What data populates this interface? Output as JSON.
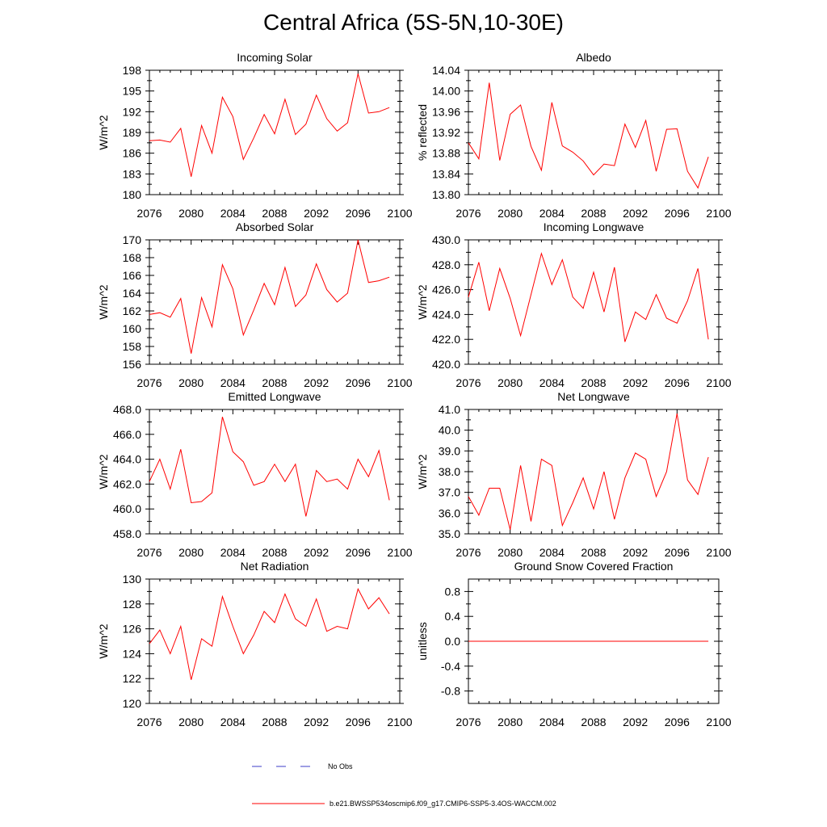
{
  "title": "Central Africa (5S-5N,10-30E)",
  "colors": {
    "series": "#ff0000",
    "obs": "#3c3cc8",
    "axis": "#000000"
  },
  "legend": {
    "obs_label": "No Obs",
    "model_label": "b.e21.BWSSP534oscmip6.f09_g17.CMIP6-SSP5-3.4OS-WACCM.002"
  },
  "chart_data": [
    {
      "type": "line",
      "title": "Incoming Solar",
      "ylabel": "W/m^2",
      "xlim": [
        2076,
        2100
      ],
      "ylim": [
        180,
        198
      ],
      "xticks": [
        "2076",
        "2080",
        "2084",
        "2088",
        "2092",
        "2096",
        "2100"
      ],
      "yticks": [
        "180",
        "183",
        "186",
        "189",
        "192",
        "195",
        "198"
      ],
      "x": [
        2076,
        2077,
        2078,
        2079,
        2080,
        2081,
        2082,
        2083,
        2084,
        2085,
        2086,
        2087,
        2088,
        2089,
        2090,
        2091,
        2092,
        2093,
        2094,
        2095,
        2096,
        2097,
        2098,
        2099
      ],
      "values": [
        187.8,
        187.9,
        187.6,
        189.6,
        182.6,
        190.0,
        186.0,
        194.1,
        191.3,
        185.1,
        188.2,
        191.6,
        188.8,
        193.8,
        188.7,
        190.2,
        194.4,
        191.0,
        189.2,
        190.4,
        197.5,
        191.8,
        192.0,
        192.6
      ]
    },
    {
      "type": "line",
      "title": "Albedo",
      "ylabel": "% reflected",
      "xlim": [
        2076,
        2100
      ],
      "ylim": [
        13.8,
        14.04
      ],
      "xticks": [
        "2076",
        "2080",
        "2084",
        "2088",
        "2092",
        "2096",
        "2100"
      ],
      "yticks": [
        "13.80",
        "13.84",
        "13.88",
        "13.92",
        "13.96",
        "14.00",
        "14.04"
      ],
      "x": [
        2076,
        2077,
        2078,
        2079,
        2080,
        2081,
        2082,
        2083,
        2084,
        2085,
        2086,
        2087,
        2088,
        2089,
        2090,
        2091,
        2092,
        2093,
        2094,
        2095,
        2096,
        2097,
        2098,
        2099
      ],
      "values": [
        13.9,
        13.869,
        14.016,
        13.866,
        13.955,
        13.973,
        13.893,
        13.847,
        13.978,
        13.894,
        13.882,
        13.865,
        13.838,
        13.859,
        13.856,
        13.936,
        13.891,
        13.943,
        13.845,
        13.926,
        13.927,
        13.845,
        13.813,
        13.873
      ]
    },
    {
      "type": "line",
      "title": "Absorbed Solar",
      "ylabel": "W/m^2",
      "xlim": [
        2076,
        2100
      ],
      "ylim": [
        156,
        170
      ],
      "xticks": [
        "2076",
        "2080",
        "2084",
        "2088",
        "2092",
        "2096",
        "2100"
      ],
      "yticks": [
        "156",
        "158",
        "160",
        "162",
        "164",
        "166",
        "168",
        "170"
      ],
      "x": [
        2076,
        2077,
        2078,
        2079,
        2080,
        2081,
        2082,
        2083,
        2084,
        2085,
        2086,
        2087,
        2088,
        2089,
        2090,
        2091,
        2092,
        2093,
        2094,
        2095,
        2096,
        2097,
        2098,
        2099
      ],
      "values": [
        161.6,
        161.8,
        161.3,
        163.4,
        157.2,
        163.5,
        160.2,
        167.2,
        164.5,
        159.3,
        162.1,
        165.1,
        162.7,
        166.9,
        162.5,
        163.8,
        167.3,
        164.4,
        163.0,
        164.0,
        170.0,
        165.2,
        165.4,
        165.8
      ]
    },
    {
      "type": "line",
      "title": "Incoming Longwave",
      "ylabel": "W/m^2",
      "xlim": [
        2076,
        2100
      ],
      "ylim": [
        420.0,
        430.0
      ],
      "xticks": [
        "2076",
        "2080",
        "2084",
        "2088",
        "2092",
        "2096",
        "2100"
      ],
      "yticks": [
        "420.0",
        "422.0",
        "424.0",
        "426.0",
        "428.0",
        "430.0"
      ],
      "x": [
        2076,
        2077,
        2078,
        2079,
        2080,
        2081,
        2082,
        2083,
        2084,
        2085,
        2086,
        2087,
        2088,
        2089,
        2090,
        2091,
        2092,
        2093,
        2094,
        2095,
        2096,
        2097,
        2098,
        2099
      ],
      "values": [
        425.4,
        428.2,
        424.3,
        427.7,
        425.3,
        422.3,
        425.6,
        428.9,
        426.4,
        428.4,
        425.4,
        424.5,
        427.4,
        424.2,
        427.8,
        421.8,
        424.2,
        423.6,
        425.6,
        423.7,
        423.3,
        425.1,
        427.7,
        422.0
      ]
    },
    {
      "type": "line",
      "title": "Emitted Longwave",
      "ylabel": "W/m^2",
      "xlim": [
        2076,
        2100
      ],
      "ylim": [
        458.0,
        468.0
      ],
      "xticks": [
        "2076",
        "2080",
        "2084",
        "2088",
        "2092",
        "2096",
        "2100"
      ],
      "yticks": [
        "458.0",
        "460.0",
        "462.0",
        "464.0",
        "466.0",
        "468.0"
      ],
      "x": [
        2076,
        2077,
        2078,
        2079,
        2080,
        2081,
        2082,
        2083,
        2084,
        2085,
        2086,
        2087,
        2088,
        2089,
        2090,
        2091,
        2092,
        2093,
        2094,
        2095,
        2096,
        2097,
        2098,
        2099
      ],
      "values": [
        462.2,
        464.0,
        461.6,
        464.8,
        460.5,
        460.6,
        461.3,
        467.4,
        464.6,
        463.8,
        461.9,
        462.2,
        463.6,
        462.2,
        463.6,
        459.4,
        463.1,
        462.2,
        462.4,
        461.6,
        464.0,
        462.6,
        464.7,
        460.7
      ]
    },
    {
      "type": "line",
      "title": "Net Longwave",
      "ylabel": "W/m^2",
      "xlim": [
        2076,
        2100
      ],
      "ylim": [
        35.0,
        41.0
      ],
      "xticks": [
        "2076",
        "2080",
        "2084",
        "2088",
        "2092",
        "2096",
        "2100"
      ],
      "yticks": [
        "35.0",
        "36.0",
        "37.0",
        "38.0",
        "39.0",
        "40.0",
        "41.0"
      ],
      "x": [
        2076,
        2077,
        2078,
        2079,
        2080,
        2081,
        2082,
        2083,
        2084,
        2085,
        2086,
        2087,
        2088,
        2089,
        2090,
        2091,
        2092,
        2093,
        2094,
        2095,
        2096,
        2097,
        2098,
        2099
      ],
      "values": [
        36.8,
        35.9,
        37.2,
        37.2,
        35.2,
        38.3,
        35.6,
        38.6,
        38.3,
        35.4,
        36.5,
        37.7,
        36.2,
        38.0,
        35.7,
        37.7,
        38.9,
        38.6,
        36.8,
        38.0,
        40.8,
        37.6,
        36.9,
        38.7
      ]
    },
    {
      "type": "line",
      "title": "Net Radiation",
      "ylabel": "W/m^2",
      "xlim": [
        2076,
        2100
      ],
      "ylim": [
        120,
        130
      ],
      "xticks": [
        "2076",
        "2080",
        "2084",
        "2088",
        "2092",
        "2096",
        "2100"
      ],
      "yticks": [
        "120",
        "122",
        "124",
        "126",
        "128",
        "130"
      ],
      "x": [
        2076,
        2077,
        2078,
        2079,
        2080,
        2081,
        2082,
        2083,
        2084,
        2085,
        2086,
        2087,
        2088,
        2089,
        2090,
        2091,
        2092,
        2093,
        2094,
        2095,
        2096,
        2097,
        2098,
        2099
      ],
      "values": [
        124.8,
        125.9,
        124.0,
        126.2,
        121.9,
        125.2,
        124.6,
        128.6,
        126.2,
        124.0,
        125.5,
        127.4,
        126.5,
        128.8,
        126.8,
        126.2,
        128.4,
        125.8,
        126.2,
        126.0,
        129.2,
        127.6,
        128.5,
        127.2
      ]
    },
    {
      "type": "line",
      "title": "Ground Snow Covered Fraction",
      "ylabel": "unitless",
      "xlim": [
        2076,
        2100
      ],
      "ylim": [
        -1.0,
        1.0
      ],
      "xticks": [
        "2076",
        "2080",
        "2084",
        "2088",
        "2092",
        "2096",
        "2100"
      ],
      "yticks": [
        "-0.8",
        "-0.4",
        "0.0",
        "0.4",
        "0.8"
      ],
      "x": [
        2076,
        2077,
        2078,
        2079,
        2080,
        2081,
        2082,
        2083,
        2084,
        2085,
        2086,
        2087,
        2088,
        2089,
        2090,
        2091,
        2092,
        2093,
        2094,
        2095,
        2096,
        2097,
        2098,
        2099
      ],
      "values": [
        0,
        0,
        0,
        0,
        0,
        0,
        0,
        0,
        0,
        0,
        0,
        0,
        0,
        0,
        0,
        0,
        0,
        0,
        0,
        0,
        0,
        0,
        0,
        0
      ]
    }
  ]
}
